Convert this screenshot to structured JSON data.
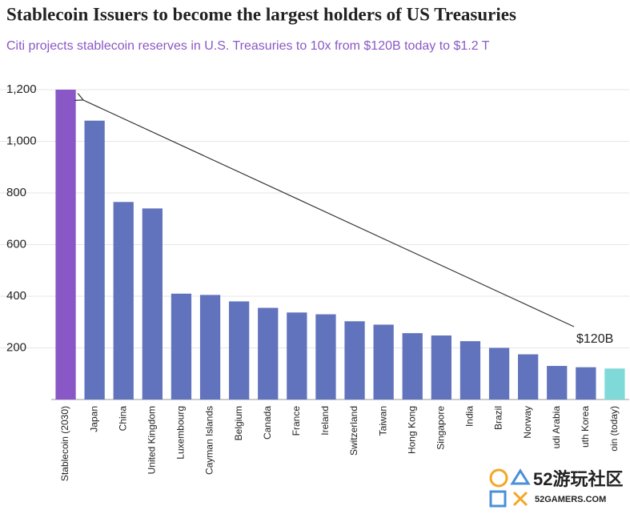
{
  "chart_data": {
    "type": "bar",
    "title": "Stablecoin Issuers to become the largest holders of US Treasuries",
    "subtitle": "Citi projects stablecoin reserves in U.S. Treasuries to 10x from $120B today to $1.2 T",
    "categories": [
      "Stablecoin (2030)",
      "Japan",
      "China",
      "United Kingdom",
      "Luxembourg",
      "Cayman Islands",
      "Belgium",
      "Canada",
      "France",
      "Ireland",
      "Switzerland",
      "Taiwan",
      "Hong Kong",
      "Singapore",
      "India",
      "Brazil",
      "Norway",
      "udi Arabia",
      "uth Korea",
      "oin (today)"
    ],
    "values": [
      1200,
      1080,
      765,
      740,
      410,
      405,
      380,
      355,
      337,
      330,
      303,
      290,
      257,
      248,
      226,
      200,
      175,
      130,
      125,
      120
    ],
    "colors": [
      "#8a58c6",
      "#6173bc",
      "#6173bc",
      "#6173bc",
      "#6173bc",
      "#6173bc",
      "#6173bc",
      "#6173bc",
      "#6173bc",
      "#6173bc",
      "#6173bc",
      "#6173bc",
      "#6173bc",
      "#6173bc",
      "#6173bc",
      "#6173bc",
      "#6173bc",
      "#6173bc",
      "#6173bc",
      "#7fd9d9"
    ],
    "ylim": [
      0,
      1200
    ],
    "yticks": [
      {
        "value": 200,
        "label": "200"
      },
      {
        "value": 400,
        "label": "400"
      },
      {
        "value": 600,
        "label": "600"
      },
      {
        "value": 800,
        "label": "800"
      },
      {
        "value": 1000,
        "label": "1,000"
      },
      {
        "value": 1200,
        "label": "1,200"
      }
    ],
    "grid": true,
    "annotation": "$120B"
  },
  "watermark": {
    "title": "52游玩社区",
    "url": "52GAMERS.COM"
  }
}
